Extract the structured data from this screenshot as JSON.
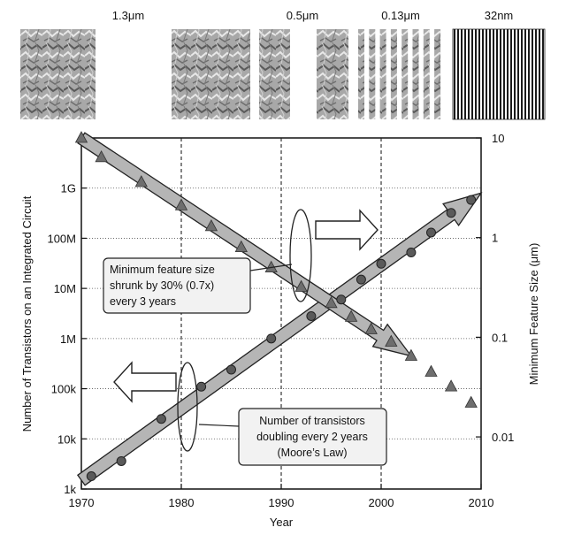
{
  "feature_panels": [
    {
      "label": "1.3μm"
    },
    {
      "label": "0.5μm"
    },
    {
      "label": "0.13μm"
    },
    {
      "label": "32nm"
    }
  ],
  "chart_data": {
    "type": "scatter",
    "title": "",
    "xlabel": "Year",
    "ylabel_left": "Number of Transistors on an Integrated Circuit",
    "ylabel_right": "Minimum Feature Size (μm)",
    "xlim": [
      1970,
      2010
    ],
    "x_ticks": [
      1970,
      1980,
      1990,
      2000,
      2010
    ],
    "x_tick_labels": [
      "1970",
      "1980",
      "1990",
      "2000",
      "2010"
    ],
    "ylim_left": [
      1000,
      10000000000
    ],
    "y_left_scale": "log",
    "y_left_ticks": [
      1000,
      10000,
      100000,
      1000000,
      10000000,
      100000000,
      1000000000
    ],
    "y_left_tick_labels": [
      "1k",
      "10k",
      "100k",
      "1M",
      "10M",
      "100M",
      "1G"
    ],
    "ylim_right": [
      0.003,
      10
    ],
    "y_right_scale": "log",
    "y_right_ticks": [
      0.01,
      0.1,
      1,
      10
    ],
    "y_right_tick_labels": [
      "0.01",
      "0.1",
      "1",
      "10"
    ],
    "grid": {
      "vertical_dashed_at": [
        1980,
        1990,
        2000
      ],
      "horizontal_dotted": true
    },
    "legend": "none",
    "series": [
      {
        "axis": "left",
        "marker": "circle",
        "x": [
          1971,
          1974,
          1978,
          1982,
          1985,
          1989,
          1993,
          1996,
          1998,
          2000,
          2003,
          2005,
          2007,
          2009
        ],
        "y": [
          1800,
          3600,
          25000,
          110000,
          240000,
          1000000,
          2800000,
          6000000,
          15000000,
          31000000,
          52000000,
          130000000,
          320000000,
          580000000
        ]
      },
      {
        "axis": "right",
        "marker": "triangle",
        "x": [
          1970,
          1972,
          1976,
          1980,
          1983,
          1986,
          1989,
          1992,
          1995,
          1997,
          1999,
          2001,
          2003,
          2005,
          2007,
          2009
        ],
        "y": [
          10,
          6.4,
          3.6,
          2.1,
          1.3,
          0.8,
          0.5,
          0.32,
          0.22,
          0.16,
          0.12,
          0.09,
          0.065,
          0.045,
          0.032,
          0.022
        ]
      }
    ],
    "trend_arrows": [
      {
        "axis": "left",
        "from": [
          1970,
          1500
        ],
        "to": [
          2010,
          800000000
        ]
      },
      {
        "axis": "right",
        "from": [
          1970,
          10
        ],
        "to": [
          2003,
          0.065
        ]
      }
    ],
    "annotations": [
      {
        "lines": [
          "Minimum feature size",
          "shrunk by 30% (0.7x)",
          "every 3 years"
        ]
      },
      {
        "lines": [
          "Number of transistors",
          "doubling every 2 years",
          "(Moore’s Law)"
        ]
      }
    ]
  }
}
